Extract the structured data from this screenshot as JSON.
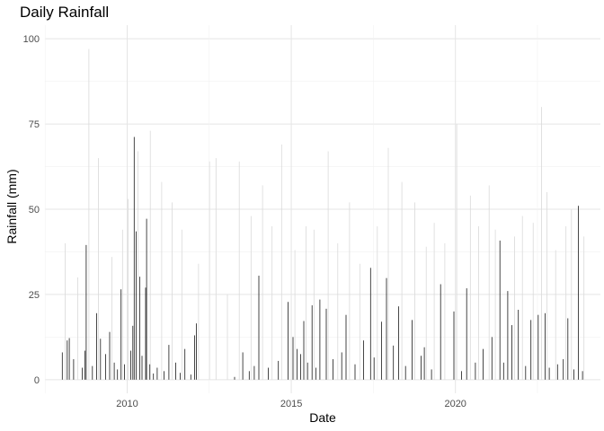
{
  "chart_data": {
    "type": "bar",
    "title": "Daily Rainfall",
    "xlabel": "Date",
    "ylabel": "Rainfall (mm)",
    "x_type": "date",
    "xlim": [
      "2007-07-01",
      "2024-06-01"
    ],
    "ylim": [
      -4,
      104
    ],
    "y_ticks": [
      0,
      25,
      50,
      75,
      100
    ],
    "x_ticks": [
      {
        "date": "2010-01-01",
        "label": "2010"
      },
      {
        "date": "2015-01-01",
        "label": "2015"
      },
      {
        "date": "2020-01-01",
        "label": "2020"
      }
    ],
    "grid": true,
    "legend": "none",
    "colors": {
      "bar": "#1a1a1a",
      "bar_faint": "#d9d9d9",
      "grid_major": "#e5e5e5",
      "grid_minor": "#f2f2f2"
    },
    "series": [
      {
        "values": [
          [
            "2008-01-10",
            8.0
          ],
          [
            "2008-03-05",
            11.5
          ],
          [
            "2008-03-28",
            12.2
          ],
          [
            "2008-05-15",
            6.0
          ],
          [
            "2008-08-20",
            3.5
          ],
          [
            "2008-09-18",
            8.5
          ],
          [
            "2008-10-02",
            39.5
          ],
          [
            "2008-12-10",
            4.0
          ],
          [
            "2009-01-25",
            19.5
          ],
          [
            "2009-03-10",
            12.0
          ],
          [
            "2009-05-05",
            7.5
          ],
          [
            "2009-06-20",
            14.0
          ],
          [
            "2009-08-10",
            5.0
          ],
          [
            "2009-09-15",
            3.0
          ],
          [
            "2009-10-25",
            26.5
          ],
          [
            "2009-12-01",
            4.5
          ],
          [
            "2010-02-10",
            8.5
          ],
          [
            "2010-03-05",
            15.8
          ],
          [
            "2010-03-20",
            71.2
          ],
          [
            "2010-04-10",
            43.5
          ],
          [
            "2010-05-20",
            30.2
          ],
          [
            "2010-06-15",
            7.0
          ],
          [
            "2010-07-25",
            27.0
          ],
          [
            "2010-08-05",
            47.2
          ],
          [
            "2010-09-10",
            4.5
          ],
          [
            "2010-10-20",
            1.8
          ],
          [
            "2010-12-01",
            3.5
          ],
          [
            "2011-02-15",
            2.5
          ],
          [
            "2011-04-10",
            10.2
          ],
          [
            "2011-06-25",
            5.0
          ],
          [
            "2011-08-15",
            2.0
          ],
          [
            "2011-10-05",
            9.0
          ],
          [
            "2011-12-10",
            1.5
          ],
          [
            "2012-01-20",
            13.0
          ],
          [
            "2012-02-10",
            16.5
          ],
          [
            "2013-04-10",
            0.8
          ],
          [
            "2013-07-10",
            8.0
          ],
          [
            "2013-09-20",
            2.5
          ],
          [
            "2013-11-15",
            4.0
          ],
          [
            "2014-01-05",
            30.5
          ],
          [
            "2014-04-20",
            3.5
          ],
          [
            "2014-08-10",
            5.5
          ],
          [
            "2014-11-25",
            22.8
          ],
          [
            "2015-01-20",
            12.5
          ],
          [
            "2015-03-05",
            9.0
          ],
          [
            "2015-04-15",
            7.5
          ],
          [
            "2015-05-20",
            17.2
          ],
          [
            "2015-07-01",
            5.0
          ],
          [
            "2015-08-20",
            21.8
          ],
          [
            "2015-10-01",
            3.5
          ],
          [
            "2015-11-15",
            23.5
          ],
          [
            "2016-01-25",
            20.8
          ],
          [
            "2016-04-10",
            6.0
          ],
          [
            "2016-07-15",
            8.0
          ],
          [
            "2016-09-01",
            19.0
          ],
          [
            "2016-12-10",
            4.5
          ],
          [
            "2017-03-15",
            11.5
          ],
          [
            "2017-06-01",
            32.8
          ],
          [
            "2017-07-10",
            6.5
          ],
          [
            "2017-10-01",
            17.0
          ],
          [
            "2017-11-25",
            29.8
          ],
          [
            "2018-02-10",
            10.0
          ],
          [
            "2018-04-10",
            21.5
          ],
          [
            "2018-06-25",
            4.0
          ],
          [
            "2018-09-05",
            17.5
          ],
          [
            "2018-12-15",
            7.0
          ],
          [
            "2019-01-20",
            9.5
          ],
          [
            "2019-04-10",
            3.0
          ],
          [
            "2019-07-20",
            28.0
          ],
          [
            "2019-12-15",
            20.0
          ],
          [
            "2020-03-10",
            2.5
          ],
          [
            "2020-05-05",
            26.8
          ],
          [
            "2020-08-10",
            5.0
          ],
          [
            "2020-11-05",
            9.0
          ],
          [
            "2021-02-10",
            12.5
          ],
          [
            "2021-05-10",
            40.8
          ],
          [
            "2021-06-20",
            5.0
          ],
          [
            "2021-08-05",
            26.0
          ],
          [
            "2021-09-20",
            16.0
          ],
          [
            "2021-12-01",
            20.5
          ],
          [
            "2022-02-20",
            4.0
          ],
          [
            "2022-04-20",
            17.5
          ],
          [
            "2022-07-10",
            19.0
          ],
          [
            "2022-09-25",
            19.5
          ],
          [
            "2022-11-10",
            3.5
          ],
          [
            "2023-02-10",
            4.5
          ],
          [
            "2023-04-15",
            6.0
          ],
          [
            "2023-06-05",
            18.0
          ],
          [
            "2023-08-10",
            3.0
          ],
          [
            "2023-10-01",
            51.0
          ],
          [
            "2023-11-15",
            2.5
          ]
        ]
      },
      {
        "values": [
          [
            "2008-02-10",
            40.0
          ],
          [
            "2008-07-01",
            30.0
          ],
          [
            "2008-11-01",
            97.0
          ],
          [
            "2009-02-15",
            65.0
          ],
          [
            "2009-07-15",
            36.0
          ],
          [
            "2009-11-10",
            44.0
          ],
          [
            "2010-01-10",
            53.0
          ],
          [
            "2010-05-01",
            67.0
          ],
          [
            "2010-09-15",
            73.0
          ],
          [
            "2011-01-20",
            58.0
          ],
          [
            "2011-05-15",
            52.0
          ],
          [
            "2011-09-01",
            44.0
          ],
          [
            "2012-03-05",
            34.0
          ],
          [
            "2012-07-05",
            64.0
          ],
          [
            "2012-09-15",
            65.0
          ],
          [
            "2013-01-20",
            25.0
          ],
          [
            "2013-06-01",
            64.0
          ],
          [
            "2013-10-10",
            48.0
          ],
          [
            "2014-02-15",
            57.0
          ],
          [
            "2014-06-01",
            45.0
          ],
          [
            "2014-09-15",
            69.0
          ],
          [
            "2015-02-10",
            38.0
          ],
          [
            "2015-06-15",
            45.0
          ],
          [
            "2015-09-10",
            44.0
          ],
          [
            "2016-02-15",
            67.0
          ],
          [
            "2016-06-01",
            40.0
          ],
          [
            "2016-10-10",
            52.0
          ],
          [
            "2017-02-01",
            34.0
          ],
          [
            "2017-08-15",
            45.0
          ],
          [
            "2017-12-15",
            68.0
          ],
          [
            "2018-05-15",
            58.0
          ],
          [
            "2018-10-05",
            52.0
          ],
          [
            "2019-02-10",
            39.0
          ],
          [
            "2019-05-10",
            46.0
          ],
          [
            "2019-09-05",
            40.0
          ],
          [
            "2020-01-15",
            75.0
          ],
          [
            "2020-06-15",
            54.0
          ],
          [
            "2020-09-15",
            45.0
          ],
          [
            "2021-01-10",
            57.0
          ],
          [
            "2021-03-20",
            44.0
          ],
          [
            "2021-10-20",
            42.0
          ],
          [
            "2022-01-15",
            48.0
          ],
          [
            "2022-05-15",
            46.0
          ],
          [
            "2022-08-15",
            80.0
          ],
          [
            "2022-10-15",
            55.0
          ],
          [
            "2023-01-20",
            38.0
          ],
          [
            "2023-05-15",
            45.0
          ],
          [
            "2023-07-15",
            50.0
          ],
          [
            "2023-12-01",
            42.0
          ]
        ]
      }
    ]
  }
}
